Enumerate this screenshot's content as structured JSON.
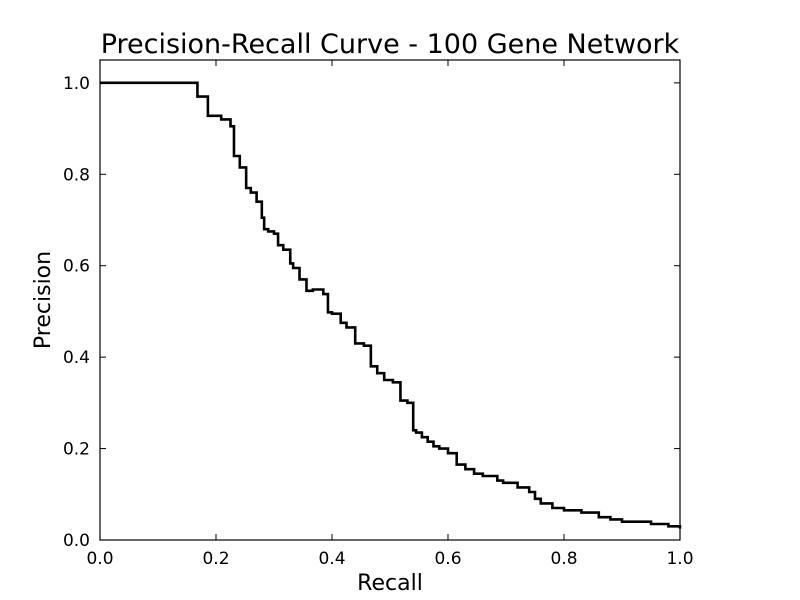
{
  "chart_data": {
    "type": "line",
    "title": "Precision-Recall Curve - 100 Gene Network",
    "xlabel": "Recall",
    "ylabel": "Precision",
    "xlim": [
      0.0,
      1.0
    ],
    "ylim": [
      0.0,
      1.05
    ],
    "xticks": [
      0.0,
      0.2,
      0.4,
      0.6,
      0.8,
      1.0
    ],
    "yticks": [
      0.0,
      0.2,
      0.4,
      0.6,
      0.8,
      1.0
    ],
    "xtick_labels": [
      "0.0",
      "0.2",
      "0.4",
      "0.6",
      "0.8",
      "1.0"
    ],
    "ytick_labels": [
      "0.0",
      "0.2",
      "0.4",
      "0.6",
      "0.8",
      "1.0"
    ],
    "grid": false,
    "legend": "none",
    "series": [
      {
        "name": "precision-recall",
        "color": "#000000",
        "step": true,
        "x": [
          0.0,
          0.168,
          0.186,
          0.209,
          0.225,
          0.231,
          0.241,
          0.252,
          0.26,
          0.27,
          0.279,
          0.283,
          0.29,
          0.3,
          0.307,
          0.316,
          0.328,
          0.333,
          0.344,
          0.356,
          0.367,
          0.385,
          0.393,
          0.4,
          0.415,
          0.425,
          0.44,
          0.455,
          0.467,
          0.478,
          0.49,
          0.505,
          0.518,
          0.53,
          0.54,
          0.545,
          0.555,
          0.565,
          0.575,
          0.585,
          0.6,
          0.615,
          0.63,
          0.645,
          0.66,
          0.685,
          0.695,
          0.72,
          0.74,
          0.75,
          0.76,
          0.78,
          0.8,
          0.83,
          0.86,
          0.88,
          0.9,
          0.95,
          0.98,
          1.0
        ],
        "y": [
          1.0,
          0.97,
          0.928,
          0.92,
          0.905,
          0.84,
          0.815,
          0.77,
          0.76,
          0.74,
          0.705,
          0.68,
          0.675,
          0.67,
          0.645,
          0.635,
          0.605,
          0.595,
          0.57,
          0.545,
          0.548,
          0.538,
          0.498,
          0.495,
          0.475,
          0.465,
          0.43,
          0.425,
          0.38,
          0.365,
          0.35,
          0.345,
          0.305,
          0.3,
          0.24,
          0.235,
          0.225,
          0.215,
          0.205,
          0.2,
          0.19,
          0.165,
          0.155,
          0.145,
          0.14,
          0.13,
          0.125,
          0.115,
          0.105,
          0.09,
          0.08,
          0.07,
          0.065,
          0.06,
          0.05,
          0.045,
          0.04,
          0.035,
          0.03,
          0.025
        ]
      }
    ]
  }
}
